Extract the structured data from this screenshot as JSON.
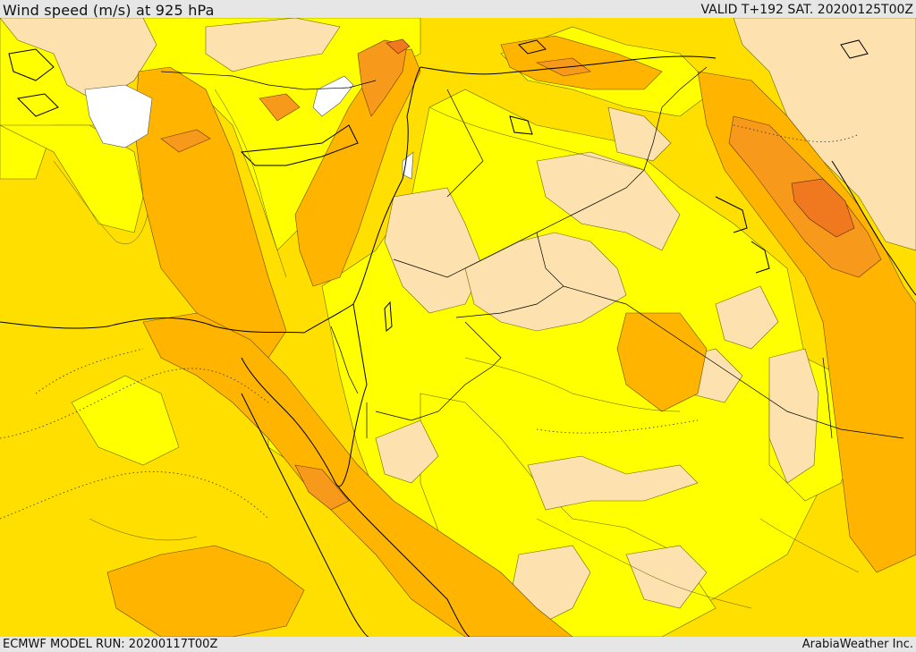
{
  "header": {
    "title": "Wind speed (m/s) at 925 hPa",
    "valid": "VALID T+192 SAT. 20200125T00Z"
  },
  "footer": {
    "model_run": "ECMWF MODEL RUN: 20200117T00Z",
    "credit": "ArabiaWeather Inc."
  },
  "map": {
    "colors": {
      "land_white": "#ffffff",
      "level_0_5": "#fde1ae",
      "level_5_10": "#ffff00",
      "level_10_15": "#ffdf00",
      "level_15_20": "#ffb400",
      "level_20_25": "#f79a1c",
      "level_25_30": "#f0781e",
      "coastline": "#000000",
      "border": "#000000"
    }
  }
}
